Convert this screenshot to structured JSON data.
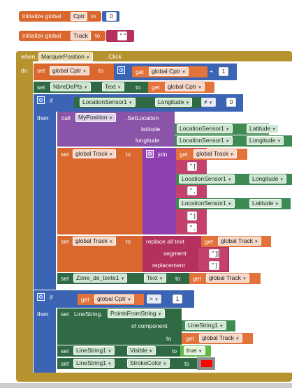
{
  "blocks": {
    "init_cptr": {
      "keyword": "initialize global",
      "var": "Cptr",
      "to": "to",
      "value": "0"
    },
    "init_track": {
      "keyword": "initialize global",
      "var": "Track",
      "to": "to",
      "value": "\" \""
    },
    "when": {
      "keyword": "when",
      "component": "MarquerPosition",
      "event": ".Click",
      "do": "do"
    },
    "set_cptr": {
      "set": "set",
      "var": "global Cptr",
      "to": "to",
      "get": "get",
      "get_var": "global Cptr",
      "op": "+",
      "num": "1"
    },
    "set_nbre": {
      "set": "set",
      "component": "NbreDePts",
      "prop": "Text",
      "to": "to",
      "get": "get",
      "get_var": "global Cptr"
    },
    "if1": {
      "if": "if",
      "component": "LocationSensor1",
      "prop": "Longitude",
      "op": "≠",
      "num": "0",
      "then": "then"
    },
    "call_setloc": {
      "call": "call",
      "component": "MyPosition",
      "method": ".SetLocation",
      "lat_label": "latitude",
      "lat_comp": "LocationSensor1",
      "lat_prop": "Latitude",
      "lon_label": "longitude",
      "lon_comp": "LocationSensor1",
      "lon_prop": "Longitude"
    },
    "set_track1": {
      "set": "set",
      "var": "global Track",
      "to": "to",
      "join": "join",
      "get": "get",
      "get_var": "global Track",
      "str1": "\" [ \"",
      "comp1": "LocationSensor1",
      "prop1": "Longitude",
      "str2": "\" , \"",
      "comp2": "LocationSensor1",
      "prop2": "Latitude",
      "str3": "\" ] \"",
      "str4": "\" , \""
    },
    "set_track2": {
      "set": "set",
      "var": "global Track",
      "to": "to",
      "replace": "replace all text",
      "get": "get",
      "get_var": "global Track",
      "segment": "segment",
      "seg_val": "\" ]] \"",
      "replacement": "replacement",
      "rep_val": "\" ] \""
    },
    "set_zone": {
      "set": "set",
      "component": "Zone_de_texte1",
      "prop": "Text",
      "to": "to",
      "get": "get",
      "get_var": "global Track"
    },
    "if2": {
      "if": "if",
      "get": "get",
      "get_var": "global Cptr",
      "op": ">",
      "num": "1",
      "then": "then"
    },
    "set_points": {
      "set": "set",
      "component": "LineString.",
      "method": "PointsFromString",
      "of_comp_label": "of component",
      "of_comp": "LineString1",
      "to": "to",
      "get": "get",
      "get_var": "global Track"
    },
    "set_visible": {
      "set": "set",
      "component": "LineString1",
      "prop": "Visible",
      "to": "to",
      "value": "true"
    },
    "set_stroke": {
      "set": "set",
      "component": "LineString1",
      "prop": "StrokeColor",
      "to": "to",
      "color": "#ff0000"
    }
  }
}
